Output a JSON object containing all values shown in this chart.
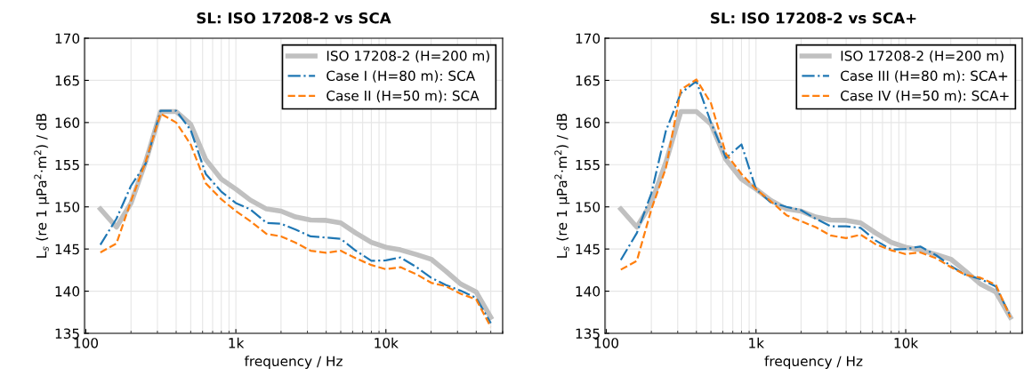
{
  "chart_data": [
    {
      "type": "line",
      "title": "SL: ISO 17208-2 vs SCA",
      "xlabel": "frequency / Hz",
      "ylabel": "L$_{s}$ (re 1 μPa$^{2}$·m$^{2}$) / dB",
      "log": "x",
      "x": [
        125,
        160,
        200,
        250,
        315,
        400,
        500,
        630,
        800,
        1000,
        1250,
        1600,
        2000,
        2500,
        3150,
        4000,
        5000,
        6300,
        8000,
        10000,
        12500,
        16000,
        20000,
        25000,
        31500,
        40000,
        50000
      ],
      "xlim": [
        98,
        60000
      ],
      "xticks": [
        {
          "value": 100,
          "label": "100"
        },
        {
          "value": 1000,
          "label": "1k"
        },
        {
          "value": 10000,
          "label": "10k"
        }
      ],
      "ylim": [
        135,
        170
      ],
      "yticks": [
        135,
        140,
        145,
        150,
        155,
        160,
        165,
        170
      ],
      "grid": true,
      "legend": "top right",
      "series": [
        {
          "name": "ISO 17208-2 (H=200 m)",
          "color": "#c0c0c0",
          "line_style": "solid",
          "values": [
            149.75,
            147.6,
            150.45,
            155.3,
            161.3,
            161.3,
            159.8,
            155.6,
            153.3,
            152.1,
            150.8,
            149.75,
            149.5,
            148.8,
            148.45,
            148.4,
            148.1,
            146.9,
            145.8,
            145.2,
            144.9,
            144.35,
            143.8,
            142.4,
            140.85,
            139.9,
            136.9
          ]
        },
        {
          "name": "Case I (H=80 m): SCA",
          "color": "#1f77b4",
          "line_style": "dashdot",
          "values": [
            145.5,
            148.6,
            152.5,
            155.1,
            161.4,
            161.4,
            159.1,
            153.9,
            151.8,
            150.45,
            149.7,
            148.1,
            148.0,
            147.3,
            146.5,
            146.35,
            146.2,
            144.8,
            143.6,
            143.65,
            144.0,
            142.85,
            141.6,
            140.75,
            140.05,
            139.2,
            136.2
          ]
        },
        {
          "name": "Case II (H=50 m): SCA",
          "color": "#ff7f0e",
          "line_style": "dashed",
          "values": [
            144.6,
            145.65,
            150.7,
            155.3,
            161.05,
            160.0,
            157.4,
            152.8,
            150.9,
            149.5,
            148.3,
            146.8,
            146.5,
            145.75,
            144.8,
            144.55,
            144.8,
            143.9,
            143.1,
            142.6,
            142.85,
            142.0,
            141.0,
            140.6,
            139.7,
            139.0,
            135.75
          ]
        }
      ]
    },
    {
      "type": "line",
      "title": "SL: ISO 17208-2 vs SCA+",
      "xlabel": "frequency / Hz",
      "ylabel": "L$_{s}$ (re 1 μPa$^{2}$·m$^{2}$) / dB",
      "log": "x",
      "x": [
        125,
        160,
        200,
        250,
        315,
        400,
        500,
        630,
        800,
        1000,
        1250,
        1600,
        2000,
        2500,
        3150,
        4000,
        5000,
        6300,
        8000,
        10000,
        12500,
        16000,
        20000,
        25000,
        31500,
        40000,
        50000
      ],
      "xlim": [
        98,
        60000
      ],
      "xticks": [
        {
          "value": 100,
          "label": "100"
        },
        {
          "value": 1000,
          "label": "1k"
        },
        {
          "value": 10000,
          "label": "10k"
        }
      ],
      "ylim": [
        135,
        170
      ],
      "yticks": [
        135,
        140,
        145,
        150,
        155,
        160,
        165,
        170
      ],
      "grid": true,
      "legend": "top right",
      "series": [
        {
          "name": "ISO 17208-2 (H=200 m)",
          "color": "#c0c0c0",
          "line_style": "solid",
          "values": [
            149.75,
            147.6,
            150.45,
            155.3,
            161.3,
            161.3,
            159.8,
            155.6,
            153.3,
            152.1,
            150.8,
            149.75,
            149.5,
            148.8,
            148.45,
            148.4,
            148.1,
            146.9,
            145.8,
            145.2,
            144.9,
            144.35,
            143.8,
            142.4,
            140.85,
            139.9,
            136.9
          ]
        },
        {
          "name": "Case III (H=80 m): SCA+",
          "color": "#1f77b4",
          "line_style": "dashdot",
          "values": [
            143.7,
            146.9,
            151.6,
            159.0,
            163.5,
            164.9,
            160.0,
            155.8,
            157.4,
            152.1,
            150.55,
            150.0,
            149.6,
            148.6,
            147.7,
            147.7,
            147.5,
            146.0,
            144.95,
            145.0,
            145.3,
            144.25,
            143.0,
            141.95,
            141.45,
            140.55,
            137.05
          ]
        },
        {
          "name": "Case IV (H=50 m): SCA+",
          "color": "#ff7f0e",
          "line_style": "dashed",
          "values": [
            142.55,
            143.6,
            149.7,
            154.6,
            163.9,
            165.1,
            162.3,
            156.3,
            153.9,
            152.1,
            150.7,
            149.0,
            148.3,
            147.6,
            146.6,
            146.3,
            146.7,
            145.55,
            144.85,
            144.4,
            144.6,
            143.9,
            142.85,
            141.95,
            141.6,
            140.75,
            136.9
          ]
        }
      ]
    }
  ]
}
